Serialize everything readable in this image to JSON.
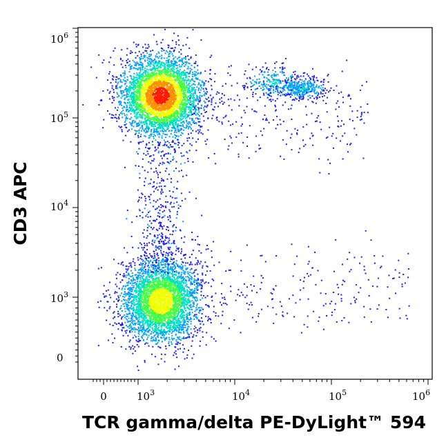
{
  "chart_data": {
    "type": "scatter",
    "style": "flow-cytometry-density-dot-plot",
    "title": "",
    "xlabel": "TCR gamma/delta PE-DyLight™ 594",
    "ylabel": "CD3 APC",
    "x_scale": "biexponential (linear near 0, log above ~10^3)",
    "y_scale": "biexponential (linear near 0, log above ~10^3)",
    "xlim": [
      -300,
      1100000
    ],
    "ylim": [
      -80,
      1200000
    ],
    "x_ticks": [
      {
        "value": 0,
        "base": "0",
        "exp": ""
      },
      {
        "value": 1000,
        "base": "10",
        "exp": "3"
      },
      {
        "value": 10000,
        "base": "10",
        "exp": "4"
      },
      {
        "value": 100000,
        "base": "10",
        "exp": "5"
      },
      {
        "value": 1000000,
        "base": "10",
        "exp": "6"
      }
    ],
    "y_ticks": [
      {
        "value": 0,
        "base": "0",
        "exp": ""
      },
      {
        "value": 1000,
        "base": "10",
        "exp": "3"
      },
      {
        "value": 10000,
        "base": "10",
        "exp": "4"
      },
      {
        "value": 100000,
        "base": "10",
        "exp": "5"
      },
      {
        "value": 1000000,
        "base": "10",
        "exp": "6"
      }
    ],
    "density_colors": [
      "#1a1aff",
      "#00a0ff",
      "#00e0c0",
      "#40ff40",
      "#f0ff00",
      "#ff9000",
      "#ff1a00"
    ],
    "populations": [
      {
        "x_center": 1700,
        "y_center": 180000,
        "peak_density": "high"
      },
      {
        "x_center": 1700,
        "y_center": 950,
        "peak_density": "medium"
      },
      {
        "x_center": 25000,
        "y_center": 250000,
        "peak_density": "low"
      },
      {
        "x_center": 50000,
        "y_center": 220000,
        "peak_density": "low"
      }
    ],
    "grid": false,
    "legend": "none"
  }
}
